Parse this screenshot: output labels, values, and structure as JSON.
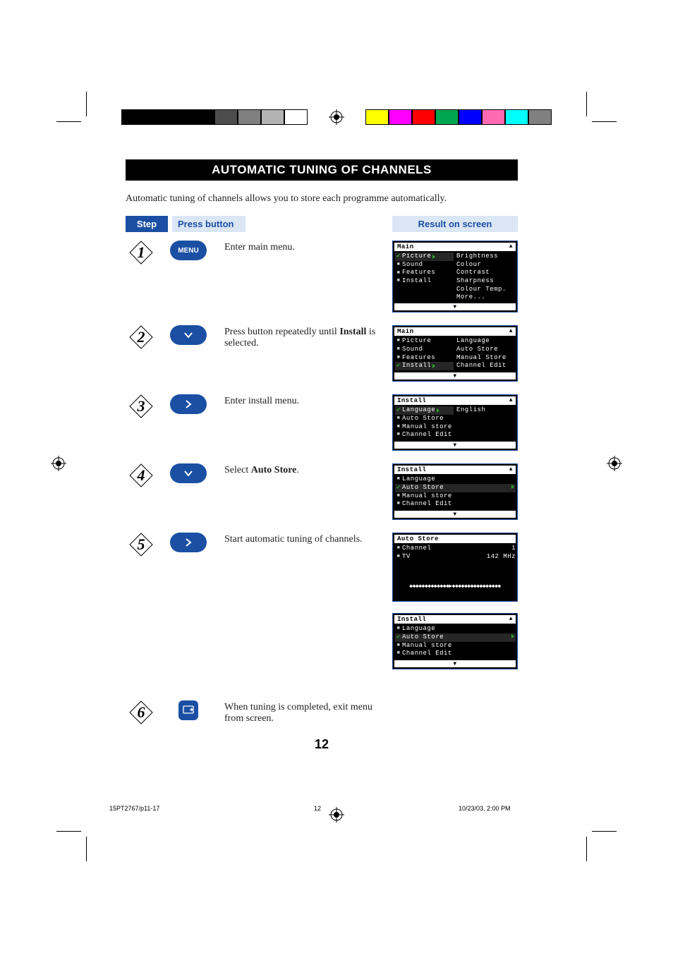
{
  "doc": {
    "title": "AUTOMATIC TUNING OF CHANNELS",
    "intro": "Automatic tuning of channels allows you to store each programme automatically.",
    "page_num": "12",
    "footer_left": "15PT2767/p11-17",
    "footer_mid": "12",
    "footer_right": "10/23/03, 2:00 PM"
  },
  "colors": {
    "accent": "#1a4fa3",
    "accent_light": "#dbe6f5",
    "osd_green": "#2aa82a",
    "black": "#000000",
    "white": "#ffffff"
  },
  "palette_left": [
    "#000000",
    "#000000",
    "#000000",
    "#000000",
    "#4d4d4d",
    "#808080",
    "#b3b3b3",
    "#ffffff"
  ],
  "palette_right": [
    "#ffff00",
    "#ff00ff",
    "#ff0000",
    "#00a651",
    "#0000ff",
    "#ff69b4",
    "#00ffff",
    "#808080"
  ],
  "headers": {
    "step": "Step",
    "press": "Press button",
    "result": "Result on screen"
  },
  "steps": [
    {
      "num": "1",
      "btn_type": "menu",
      "btn_label": "MENU",
      "desc": "Enter main menu.",
      "osd": 0
    },
    {
      "num": "2",
      "btn_type": "down",
      "desc_pre": "Press button repeatedly until ",
      "desc_bold": "Install",
      "desc_post": " is selected.",
      "osd": 1
    },
    {
      "num": "3",
      "btn_type": "right",
      "desc": "Enter install menu.",
      "osd": 2
    },
    {
      "num": "4",
      "btn_type": "down",
      "desc_pre": "Select ",
      "desc_bold": "Auto Store",
      "desc_post": ".",
      "osd": 3
    },
    {
      "num": "5",
      "btn_type": "right",
      "desc": "Start automatic tuning of channels.",
      "osd": 4
    },
    {
      "num": "6",
      "btn_type": "exit",
      "desc": "When tuning is completed, exit menu from screen.",
      "osd": null
    }
  ],
  "osd": [
    {
      "header": "Main",
      "left": [
        {
          "mark": "check",
          "label": "Picture",
          "sel": true,
          "arr": true
        },
        {
          "mark": "bullet",
          "label": "Sound"
        },
        {
          "mark": "bullet",
          "label": "Features"
        },
        {
          "mark": "bullet",
          "label": "Install"
        }
      ],
      "right": [
        "Brightness",
        "Colour",
        "Contrast",
        "Sharpness",
        "Colour Temp.",
        "More..."
      ]
    },
    {
      "header": "Main",
      "left": [
        {
          "mark": "bullet",
          "label": "Picture"
        },
        {
          "mark": "bullet",
          "label": "Sound"
        },
        {
          "mark": "bullet",
          "label": "Features"
        },
        {
          "mark": "check",
          "label": "Install",
          "sel": true,
          "arr": true
        }
      ],
      "right": [
        "Language",
        "Auto Store",
        "Manual Store",
        "Channel Edit"
      ]
    },
    {
      "header": "Install",
      "left": [
        {
          "mark": "check",
          "label": "Language",
          "sel": true,
          "arr": true
        },
        {
          "mark": "bullet",
          "label": "Auto Store"
        },
        {
          "mark": "bullet",
          "label": "Manual store"
        },
        {
          "mark": "bullet",
          "label": "Channel Edit"
        }
      ],
      "right": [
        "English"
      ]
    },
    {
      "header": "Install",
      "left": [
        {
          "mark": "bullet",
          "label": "Language"
        },
        {
          "mark": "check",
          "label": "Auto Store",
          "sel": true,
          "arr": true,
          "arr_right": true
        },
        {
          "mark": "bullet",
          "label": "Manual store"
        },
        {
          "mark": "bullet",
          "label": "Channel Edit"
        }
      ],
      "right": []
    },
    {
      "header": "Auto Store",
      "left": [
        {
          "mark": "bullet",
          "label": "Channel",
          "val": "1"
        },
        {
          "mark": "bullet",
          "label": "TV",
          "val": "142 MHz"
        }
      ],
      "progress": "◆◆◆◆◆◆◆◆◆◆◆◆◆▶◆◆◆◆◆◆◆◆◆◆◆◆◆◆◆◆",
      "no_footer": true,
      "no_arrow_up": true,
      "right": []
    },
    {
      "header": "Install",
      "left": [
        {
          "mark": "bullet",
          "label": "Language"
        },
        {
          "mark": "check",
          "label": "Auto Store",
          "sel": true,
          "arr": true,
          "arr_right": true
        },
        {
          "mark": "bullet",
          "label": "Manual store"
        },
        {
          "mark": "bullet",
          "label": "Channel Edit"
        }
      ],
      "right": []
    }
  ]
}
